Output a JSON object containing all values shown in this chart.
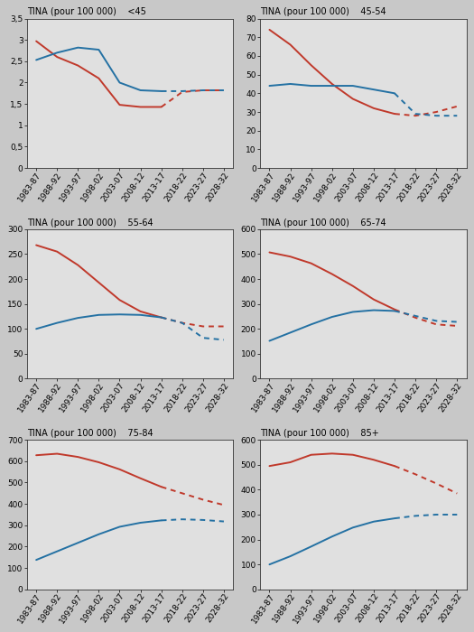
{
  "x_labels": [
    "1983-87",
    "1988-92",
    "1993-97",
    "1998-02",
    "2003-07",
    "2008-12",
    "2013-17",
    "2018-22",
    "2023-27",
    "2028-32"
  ],
  "x_ticks": [
    0,
    1,
    2,
    3,
    4,
    5,
    6,
    7,
    8,
    9
  ],
  "solid_end": 6,
  "panels": [
    {
      "title": "<45",
      "ylim": [
        0,
        3.5
      ],
      "yticks": [
        0,
        0.5,
        1,
        1.5,
        2,
        2.5,
        3,
        3.5
      ],
      "ytick_labels": [
        "0",
        "0,5",
        "1",
        "1,5",
        "2",
        "2,5",
        "3",
        "3,5"
      ],
      "red": [
        2.97,
        2.6,
        2.4,
        2.1,
        1.48,
        1.43,
        1.43,
        1.78,
        1.82,
        1.82
      ],
      "blue": [
        2.53,
        2.7,
        2.82,
        2.77,
        2.0,
        1.82,
        1.8,
        1.8,
        1.82,
        1.82
      ]
    },
    {
      "title": "45-54",
      "ylim": [
        0,
        80
      ],
      "yticks": [
        0,
        10,
        20,
        30,
        40,
        50,
        60,
        70,
        80
      ],
      "ytick_labels": [
        "0",
        "10",
        "20",
        "30",
        "40",
        "50",
        "60",
        "70",
        "80"
      ],
      "red": [
        74,
        66,
        55,
        45,
        37,
        32,
        29,
        28,
        30,
        33
      ],
      "blue": [
        44,
        45,
        44,
        44,
        44,
        42,
        40,
        29,
        28,
        28
      ]
    },
    {
      "title": "55-64",
      "ylim": [
        0,
        300
      ],
      "yticks": [
        0,
        50,
        100,
        150,
        200,
        250,
        300
      ],
      "ytick_labels": [
        "0",
        "50",
        "100",
        "150",
        "200",
        "250",
        "300"
      ],
      "red": [
        268,
        255,
        228,
        193,
        158,
        135,
        123,
        112,
        105,
        105
      ],
      "blue": [
        100,
        112,
        122,
        128,
        129,
        128,
        123,
        112,
        82,
        78
      ]
    },
    {
      "title": "65-74",
      "ylim": [
        0,
        600
      ],
      "yticks": [
        0,
        100,
        200,
        300,
        400,
        500,
        600
      ],
      "ytick_labels": [
        "0",
        "100",
        "200",
        "300",
        "400",
        "500",
        "600"
      ],
      "red": [
        507,
        490,
        463,
        420,
        372,
        318,
        278,
        245,
        218,
        212
      ],
      "blue": [
        152,
        185,
        218,
        248,
        268,
        275,
        272,
        252,
        232,
        228
      ]
    },
    {
      "title": "75-84",
      "ylim": [
        0,
        700
      ],
      "yticks": [
        0,
        100,
        200,
        300,
        400,
        500,
        600,
        700
      ],
      "ytick_labels": [
        "0",
        "100",
        "200",
        "300",
        "400",
        "500",
        "600",
        "700"
      ],
      "red": [
        628,
        635,
        620,
        595,
        562,
        520,
        480,
        450,
        420,
        395
      ],
      "blue": [
        138,
        178,
        218,
        258,
        293,
        312,
        323,
        328,
        325,
        318
      ]
    },
    {
      "title": "85+",
      "ylim": [
        0,
        600
      ],
      "yticks": [
        0,
        100,
        200,
        300,
        400,
        500,
        600
      ],
      "ytick_labels": [
        "0",
        "100",
        "200",
        "300",
        "400",
        "500",
        "600"
      ],
      "red": [
        495,
        510,
        540,
        545,
        540,
        520,
        495,
        462,
        425,
        385
      ],
      "blue": [
        100,
        133,
        172,
        212,
        248,
        272,
        285,
        295,
        300,
        300
      ]
    }
  ],
  "bg_color": "#c8c8c8",
  "plot_bg_color": "#e0e0e0",
  "red_color": "#c0392b",
  "blue_color": "#2471a3",
  "font_size": 6.5,
  "title_font_size": 7.0,
  "lw": 1.4
}
